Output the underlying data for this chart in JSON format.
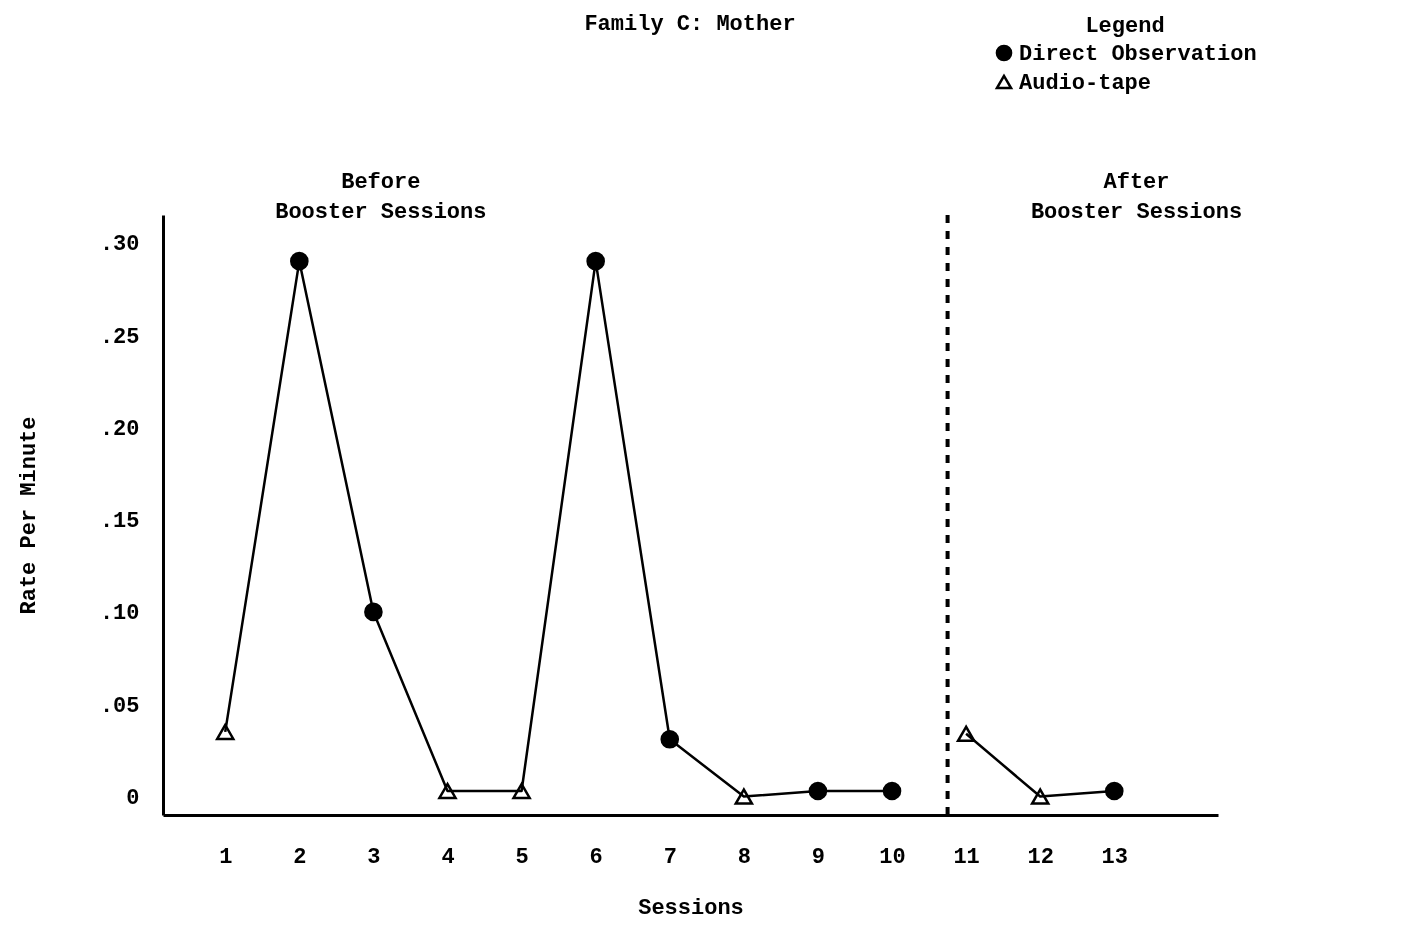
{
  "chart_data": {
    "type": "line",
    "title": "Family C: Mother",
    "xlabel": "Sessions",
    "ylabel": "Rate Per Minute",
    "legend_title": "Legend",
    "legend": "top right",
    "grid": false,
    "xlim": [
      0.16,
      14.4
    ],
    "xticks": [
      1,
      2,
      3,
      4,
      5,
      6,
      7,
      8,
      9,
      10,
      11,
      12,
      13
    ],
    "ylim": [
      -0.01,
      0.315
    ],
    "yticks": [
      {
        "value": 0,
        "label": "0"
      },
      {
        "value": 0.05,
        "label": ".05"
      },
      {
        "value": 0.1,
        "label": ".10"
      },
      {
        "value": 0.15,
        "label": ".15"
      },
      {
        "value": 0.2,
        "label": ".20"
      },
      {
        "value": 0.25,
        "label": ".25"
      },
      {
        "value": 0.3,
        "label": ".30"
      }
    ],
    "series": [
      {
        "color": "#000000",
        "marker": "none",
        "x": [
          1,
          2,
          3,
          4,
          5,
          6,
          7,
          8,
          9,
          10,
          10.75,
          11,
          12,
          13
        ],
        "values": [
          0.035,
          0.29,
          0.1,
          0.003,
          0.003,
          0.29,
          0.031,
          0,
          0.003,
          0.003,
          null,
          0.034,
          0,
          0.003
        ]
      },
      {
        "type": "scatter",
        "name": "Direct Observation",
        "color": "#000000",
        "marker": "circle",
        "x": [
          2,
          3,
          6,
          7,
          9,
          10,
          13
        ],
        "values": [
          0.29,
          0.1,
          0.29,
          0.031,
          0.003,
          0.003,
          0.003
        ]
      },
      {
        "type": "scatter",
        "name": "Audio-tape",
        "color": "#000000",
        "marker": "triangle",
        "x": [
          1,
          4,
          5,
          8,
          11,
          12
        ],
        "values": [
          0.035,
          0.003,
          0.003,
          0,
          0.034,
          0
        ]
      }
    ],
    "ref_lines": [
      {
        "axis": "x",
        "value": 10.75,
        "line_style": "dashed",
        "color": "#000000"
      }
    ],
    "annotations": [
      "Before\nBooster Sessions",
      "After\nBooster Sessions"
    ]
  }
}
